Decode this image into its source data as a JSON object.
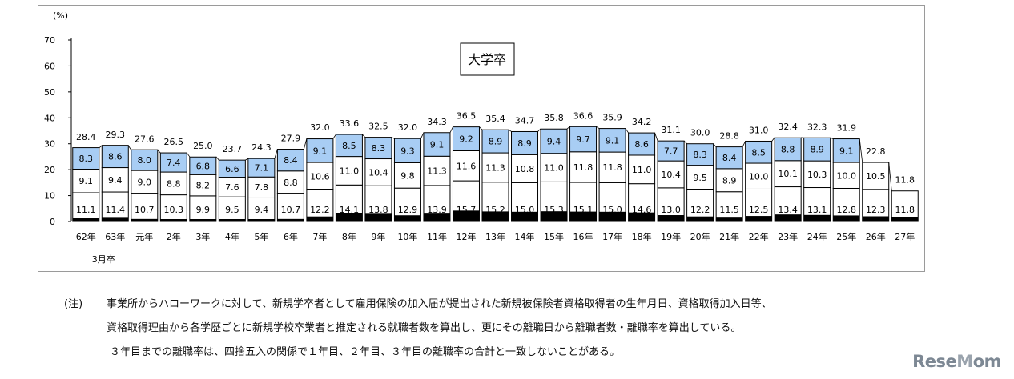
{
  "chart_data": {
    "type": "bar",
    "stacked": true,
    "title": "大学卒",
    "ylabel": "(%)",
    "ylim": [
      0,
      70
    ],
    "yticks": [
      0,
      10,
      20,
      30,
      40,
      50,
      60,
      70
    ],
    "categories": [
      "62年",
      "63年",
      "元年",
      "2年",
      "3年",
      "4年",
      "5年",
      "6年",
      "7年",
      "8年",
      "9年",
      "10年",
      "11年",
      "12年",
      "13年",
      "14年",
      "15年",
      "16年",
      "17年",
      "18年",
      "19年",
      "20年",
      "21年",
      "22年",
      "23年",
      "24年",
      "25年",
      "26年",
      "27年"
    ],
    "category_note": "3月卒",
    "series": [
      {
        "values": [
          11.1,
          11.4,
          10.7,
          10.3,
          9.9,
          9.5,
          9.4,
          10.7,
          12.2,
          14.1,
          13.8,
          12.9,
          13.9,
          15.7,
          15.2,
          15.0,
          15.3,
          15.1,
          15.0,
          14.6,
          13.0,
          12.2,
          11.5,
          12.5,
          13.4,
          13.1,
          12.8,
          12.3,
          11.8
        ]
      },
      {
        "values": [
          9.1,
          9.4,
          9.0,
          8.8,
          8.2,
          7.6,
          7.8,
          8.8,
          10.6,
          11.0,
          10.4,
          9.8,
          11.3,
          11.6,
          11.3,
          10.8,
          11.0,
          11.8,
          11.8,
          11.0,
          10.4,
          9.5,
          8.9,
          10.0,
          10.1,
          10.3,
          10.0,
          10.5,
          null
        ]
      },
      {
        "values": [
          8.3,
          8.6,
          8.0,
          7.4,
          6.8,
          6.6,
          7.1,
          8.4,
          9.1,
          8.5,
          8.3,
          9.3,
          9.1,
          9.2,
          8.9,
          8.9,
          9.4,
          9.7,
          9.1,
          8.6,
          7.7,
          8.3,
          8.4,
          8.5,
          8.8,
          8.9,
          9.1,
          null,
          null
        ]
      }
    ],
    "totals": [
      28.4,
      29.3,
      27.6,
      26.5,
      25.0,
      23.7,
      24.3,
      27.9,
      32.0,
      33.6,
      32.5,
      32.0,
      34.3,
      36.5,
      35.4,
      34.7,
      35.8,
      36.6,
      35.9,
      34.2,
      31.1,
      30.0,
      28.8,
      31.0,
      32.4,
      32.3,
      31.9,
      22.8,
      11.8
    ],
    "colors": {
      "year3": "#a8cdf4",
      "year2": "#ffffff",
      "year1": "#ffffff",
      "year1_base": "#000000",
      "outline": "#000000"
    },
    "grid": false
  },
  "notes": {
    "tag": "(注)",
    "line1": "事業所からハローワークに対して、新規学卒者として雇用保険の加入届が提出された新規被保険者資格取得者の生年月日、資格取得加入日等、",
    "line2": "資格取得理由から各学歴ごとに新規学校卒業者と推定される就職者数を算出し、更にその離職日から離職者数・離職率を算出している。",
    "line3": "３年目までの離職率は、四捨五入の関係で１年目、２年目、３年目の離職率の合計と一致しないことがある。"
  },
  "watermark": {
    "brand_a": "Rese",
    "brand_dot": "M",
    "brand_b": "om"
  }
}
